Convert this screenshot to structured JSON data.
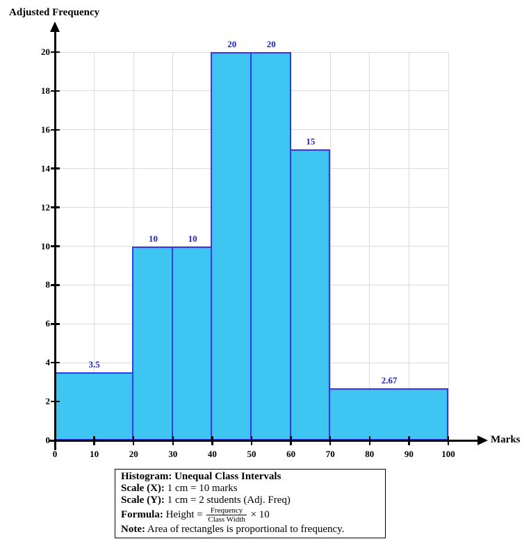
{
  "chart_data": {
    "type": "bar",
    "title": "Histogram: Unequal Class Intervals",
    "xlabel": "Marks",
    "ylabel": "Adjusted Frequency",
    "xlim": [
      0,
      100
    ],
    "ylim": [
      0,
      20
    ],
    "x_ticks": [
      0,
      10,
      20,
      30,
      40,
      50,
      60,
      70,
      80,
      90,
      100
    ],
    "y_ticks": [
      0,
      2,
      4,
      6,
      8,
      10,
      12,
      14,
      16,
      18,
      20
    ],
    "grid": true,
    "legend_position": "bottom",
    "bars": [
      {
        "from": 0,
        "to": 20,
        "height": 3.5,
        "label": "3.5"
      },
      {
        "from": 20,
        "to": 30,
        "height": 10,
        "label": "10"
      },
      {
        "from": 30,
        "to": 40,
        "height": 10,
        "label": "10"
      },
      {
        "from": 40,
        "to": 50,
        "height": 20,
        "label": "20"
      },
      {
        "from": 50,
        "to": 60,
        "height": 20,
        "label": "20"
      },
      {
        "from": 60,
        "to": 70,
        "height": 15,
        "label": "15"
      },
      {
        "from": 70,
        "to": 100,
        "height": 2.67,
        "label": "2.67"
      }
    ],
    "colors": {
      "bar_fill": "#3EC5F1",
      "bar_border": "#3636F0",
      "bar_label": "#2323CC",
      "grid": "#DBDBDB",
      "axis": "#000000"
    }
  },
  "legend_box": {
    "title": "Histogram: Unequal Class Intervals",
    "scale_x_label": "Scale (X):",
    "scale_x_value": "1 cm = 10 marks",
    "scale_y_label": "Scale (Y):",
    "scale_y_value": "1 cm = 2 students (Adj. Freq)",
    "formula_label": "Formula:",
    "formula_pre": "Height =",
    "formula_numerator": "Frequency",
    "formula_denominator": "Class Width",
    "formula_post": "× 10",
    "note_label": "Note:",
    "note_value": "Area of rectangles is proportional to frequency."
  }
}
